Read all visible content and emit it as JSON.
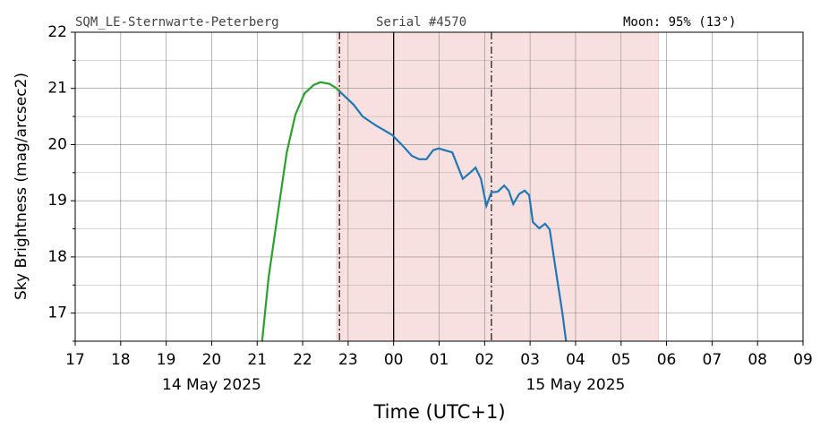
{
  "chart_data": {
    "type": "line",
    "header": {
      "site": "SQM_LE-Sternwarte-Peterberg",
      "serial": "Serial #4570",
      "moon": "Moon: 95% (13°)"
    },
    "ylabel": "Sky Brightness (mag/arcsec2)",
    "xlabel": "Time (UTC+1)",
    "xlim": [
      17,
      33
    ],
    "xticks": [
      17,
      18,
      19,
      20,
      21,
      22,
      23,
      {
        "value": 24,
        "label": "00"
      },
      {
        "value": 25,
        "label": "01"
      },
      {
        "value": 26,
        "label": "02"
      },
      {
        "value": 27,
        "label": "03"
      },
      {
        "value": 28,
        "label": "04"
      },
      {
        "value": 29,
        "label": "05"
      },
      {
        "value": 30,
        "label": "06"
      },
      {
        "value": 31,
        "label": "07"
      },
      {
        "value": 32,
        "label": "08"
      },
      {
        "value": 33,
        "label": "09"
      }
    ],
    "date_labels": [
      {
        "text": "14 May 2025",
        "x": 20
      },
      {
        "text": "15 May 2025",
        "x": 28
      }
    ],
    "ylim": [
      16.5,
      22
    ],
    "yticks": [
      17,
      18,
      19,
      20,
      21,
      22
    ],
    "yminorticks": [
      16.5,
      17.5,
      18.5,
      19.5,
      20.5,
      21.5
    ],
    "grid": true,
    "span": {
      "x": [
        22.75,
        29.82
      ],
      "color": "#f9e0e0"
    },
    "vlines": [
      {
        "x": 22.81,
        "style": "dashdot"
      },
      {
        "x": 24,
        "style": "solid"
      },
      {
        "x": 26.15,
        "style": "dashdot"
      }
    ],
    "series": [
      {
        "color": "#2ca02c",
        "x": [
          21.11,
          21.25,
          21.45,
          21.65,
          21.84,
          22.04,
          22.24,
          22.39,
          22.59,
          22.73,
          22.81
        ],
        "values": [
          16.5,
          17.63,
          18.75,
          19.86,
          20.53,
          20.91,
          21.06,
          21.11,
          21.08,
          21.01,
          20.95
        ]
      },
      {
        "color": "#1f77b4",
        "x": [
          22.81,
          23.12,
          23.32,
          23.61,
          23.97,
          24.2,
          24.4,
          24.56,
          24.72,
          24.87,
          24.99,
          25.29,
          25.52,
          25.68,
          25.8,
          25.92,
          26.04,
          26.15,
          26.29,
          26.43,
          26.53,
          26.63,
          26.76,
          26.88,
          26.98,
          27.06,
          27.2,
          27.33,
          27.43,
          27.59,
          27.71,
          27.79
        ],
        "values": [
          20.95,
          20.71,
          20.5,
          20.34,
          20.17,
          19.98,
          19.8,
          19.74,
          19.74,
          19.9,
          19.93,
          19.86,
          19.39,
          19.5,
          19.59,
          19.39,
          18.91,
          19.15,
          19.16,
          19.27,
          19.18,
          18.94,
          19.12,
          19.18,
          19.1,
          18.62,
          18.51,
          18.59,
          18.49,
          17.63,
          17.0,
          16.5
        ]
      }
    ]
  }
}
